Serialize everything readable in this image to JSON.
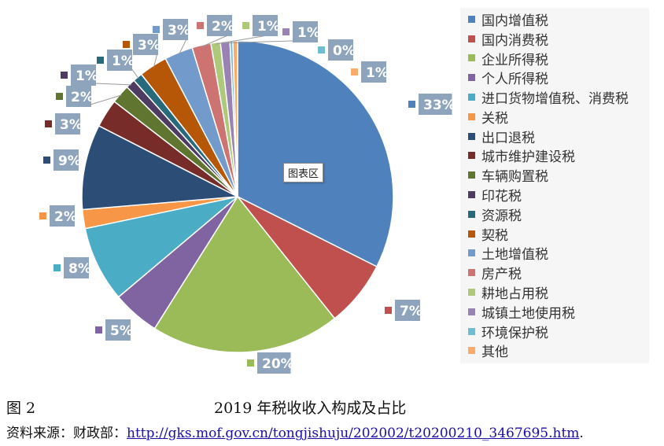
{
  "chart_data": {
    "type": "pie",
    "slices": [
      {
        "name": "国内增值税",
        "value": 33,
        "label": "33%",
        "color": "#4f81bd"
      },
      {
        "name": "国内消费税",
        "value": 7,
        "label": "7%",
        "color": "#c0504d"
      },
      {
        "name": "企业所得税",
        "value": 20,
        "label": "20%",
        "color": "#9bbb59"
      },
      {
        "name": "个人所得税",
        "value": 5,
        "label": "5%",
        "color": "#8064a2"
      },
      {
        "name": "进口货物增值税、消费税",
        "value": 8,
        "label": "8%",
        "color": "#4bacc6"
      },
      {
        "name": "关税",
        "value": 2,
        "label": "2%",
        "color": "#f79646"
      },
      {
        "name": "出口退税",
        "value": 9,
        "label": "9%",
        "color": "#2c4d75"
      },
      {
        "name": "城市维护建设税",
        "value": 3,
        "label": "3%",
        "color": "#772c2a"
      },
      {
        "name": "车辆购置税",
        "value": 2,
        "label": "2%",
        "color": "#5f7530"
      },
      {
        "name": "印花税",
        "value": 1,
        "label": "1%",
        "color": "#4d3b62"
      },
      {
        "name": "资源税",
        "value": 1,
        "label": "1%",
        "color": "#276a7c"
      },
      {
        "name": "契税",
        "value": 3,
        "label": "3%",
        "color": "#b65708"
      },
      {
        "name": "土地增值税",
        "value": 3,
        "label": "3%",
        "color": "#729aca"
      },
      {
        "name": "房产税",
        "value": 2,
        "label": "2%",
        "color": "#cd7371"
      },
      {
        "name": "耕地占用税",
        "value": 1,
        "label": "1%",
        "color": "#afc97a"
      },
      {
        "name": "城镇土地使用税",
        "value": 1,
        "label": "1%",
        "color": "#9983b5"
      },
      {
        "name": "环境保护税",
        "value": 0.3,
        "label": "0%",
        "color": "#6fbdd1"
      },
      {
        "name": "其他",
        "value": 0.5,
        "label": "1%",
        "color": "#f9ab6b"
      }
    ],
    "legend_position": "right",
    "plot_area_tip": "图表区"
  },
  "caption": {
    "figure_number": "图 2",
    "title": "2019 年税收收入构成及占比"
  },
  "source": {
    "prefix": "资料来源：财政部：",
    "url": "http://gks.mof.gov.cn/tongjishuju/202002/t20200210_3467695.htm",
    "suffix": "."
  }
}
